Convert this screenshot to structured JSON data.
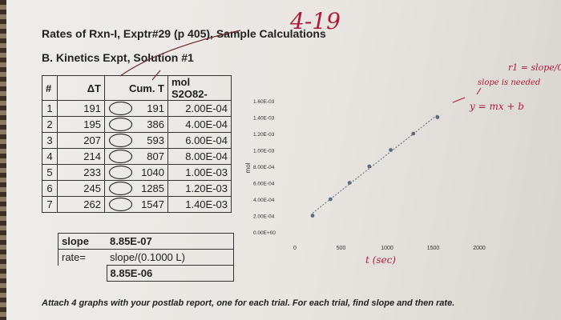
{
  "document": {
    "title": "Rates of Rxn-I, Exptr#29 (p 405), Sample Calculations",
    "subtitle": "B. Kinetics Expt, Solution #1",
    "footer": "Attach 4 graphs with your postlab report, one for each trial. For each trial, find slope and then rate."
  },
  "table": {
    "headers": [
      "#",
      "ΔT",
      "Cum. T",
      "mol S2O82-"
    ],
    "rows": [
      {
        "n": "1",
        "dt": "191",
        "cum": "191",
        "mol": "2.00E-04"
      },
      {
        "n": "2",
        "dt": "195",
        "cum": "386",
        "mol": "4.00E-04"
      },
      {
        "n": "3",
        "dt": "207",
        "cum": "593",
        "mol": "6.00E-04"
      },
      {
        "n": "4",
        "dt": "214",
        "cum": "807",
        "mol": "8.00E-04"
      },
      {
        "n": "5",
        "dt": "233",
        "cum": "1040",
        "mol": "1.00E-03"
      },
      {
        "n": "6",
        "dt": "245",
        "cum": "1285",
        "mol": "1.20E-03"
      },
      {
        "n": "7",
        "dt": "262",
        "cum": "1547",
        "mol": "1.40E-03"
      }
    ]
  },
  "results": {
    "slope_label": "slope",
    "slope_value": "8.85E-07",
    "rate_label": "rate=",
    "rate_formula": "slope/(0.1000 L)",
    "rate_value": "8.85E-06"
  },
  "handwriting": {
    "title_note": "4-19",
    "rate_note": "r1 = slope/0.1L",
    "slope_note": "slope is needed",
    "line_eq": "y = mx + b",
    "xaxis_note": "t (sec)"
  },
  "chart_data": {
    "type": "scatter",
    "x": [
      191,
      386,
      593,
      807,
      1040,
      1285,
      1547
    ],
    "y": [
      0.0002,
      0.0004,
      0.0006,
      0.0008,
      0.001,
      0.0012,
      0.0014
    ],
    "xticks": [
      "0",
      "500",
      "1000",
      "1500",
      "2000"
    ],
    "yticks": [
      "0.00E+00",
      "2.00E-04",
      "4.00E-04",
      "6.00E-04",
      "8.00E-04",
      "1.00E-03",
      "1.20E-03",
      "1.40E-03",
      "1.60E-03"
    ],
    "ylabel": "mol",
    "xlim": [
      0,
      2000
    ],
    "ylim": [
      0,
      0.0016
    ],
    "trendline": true,
    "marker_color": "#5d6b7a",
    "trend_color": "#6e7c8c"
  }
}
